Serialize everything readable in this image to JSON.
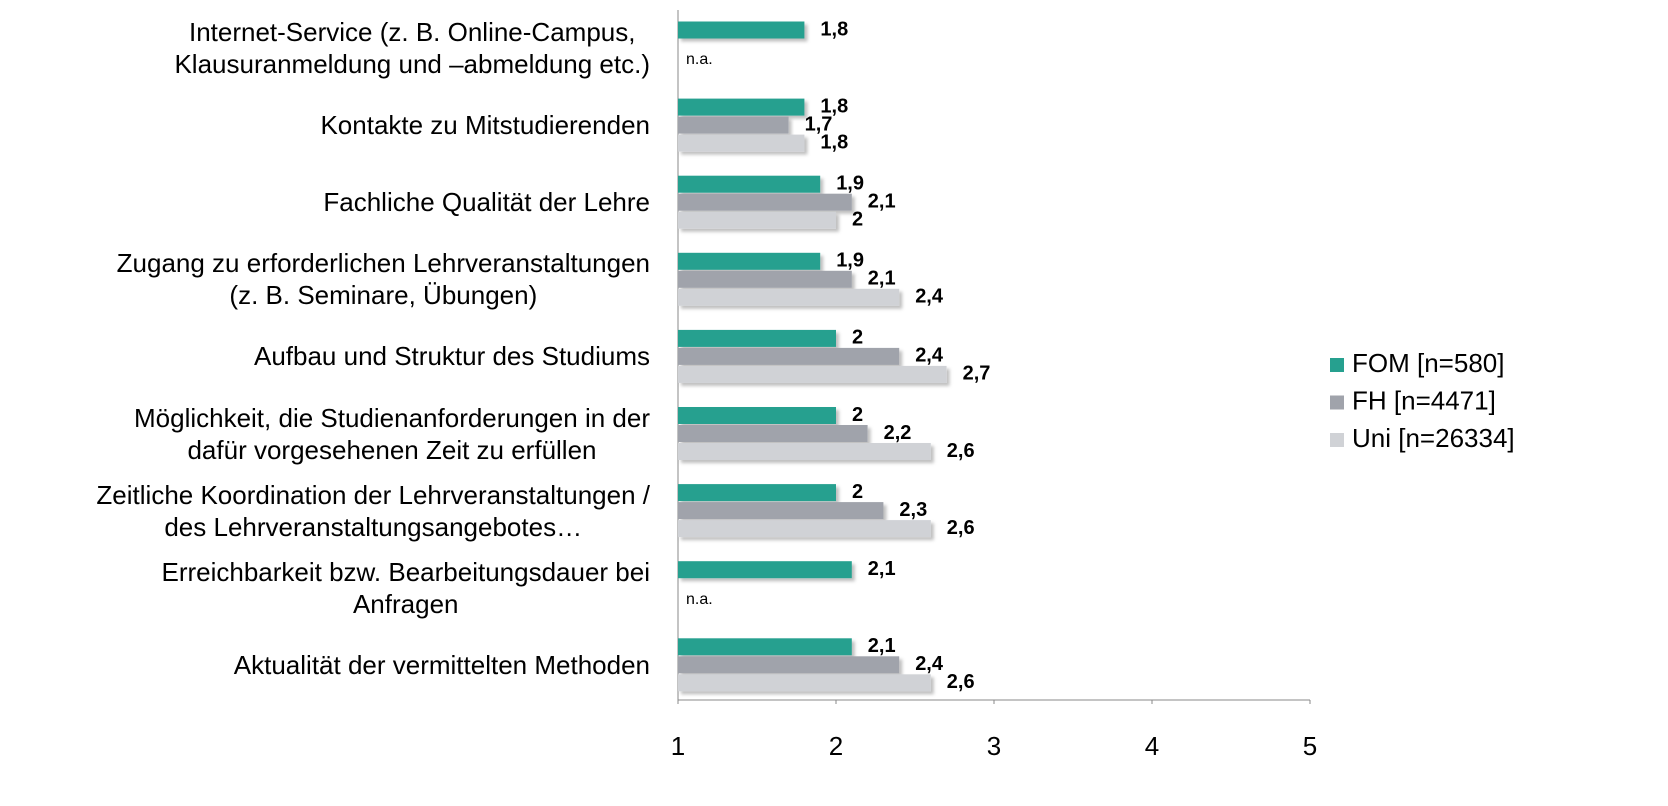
{
  "chart_data": {
    "type": "bar",
    "orientation": "horizontal",
    "categories": [
      "Internet-Service (z. B. Online-Campus,\nKlausuranmeldung und –abmeldung etc.)",
      "Kontakte zu Mitstudierenden",
      "Fachliche Qualität der Lehre",
      "Zugang zu erforderlichen Lehrveranstaltungen\n(z. B. Seminare, Übungen)",
      "Aufbau und Struktur des Studiums",
      "Möglichkeit, die Studienanforderungen in der\ndafür vorgesehenen Zeit zu erfüllen",
      "Zeitliche Koordination der Lehrveranstaltungen /\ndes Lehrveranstaltungsangebotes…",
      "Erreichbarkeit bzw. Bearbeitungsdauer bei\nAnfragen",
      "Aktualität der vermittelten Methoden"
    ],
    "series": [
      {
        "name": "FOM [n=580]",
        "color": "#26a08f",
        "values": [
          1.8,
          1.8,
          1.9,
          1.9,
          2,
          2,
          2,
          2.1,
          2.1
        ],
        "value_labels": [
          "1,8",
          "1,8",
          "1,9",
          "1,9",
          "2",
          "2",
          "2",
          "2,1",
          "2,1"
        ]
      },
      {
        "name": "FH [n=4471]",
        "color": "#a0a3ab",
        "values": [
          null,
          1.7,
          2.1,
          2.1,
          2.4,
          2.2,
          2.3,
          null,
          2.4
        ],
        "value_labels": [
          "n.a.",
          "1,7",
          "2,1",
          "2,1",
          "2,4",
          "2,2",
          "2,3",
          "n.a.",
          "2,4"
        ]
      },
      {
        "name": "Uni [n=26334]",
        "color": "#d0d2d6",
        "values": [
          null,
          1.8,
          2,
          2.4,
          2.7,
          2.6,
          2.6,
          null,
          2.6
        ],
        "value_labels": [
          null,
          "1,8",
          "2",
          "2,4",
          "2,7",
          "2,6",
          "2,6",
          null,
          "2,6"
        ]
      }
    ],
    "xlim": [
      1,
      5
    ],
    "xticks": [
      1,
      2,
      3,
      4,
      5
    ],
    "legend": "right"
  }
}
